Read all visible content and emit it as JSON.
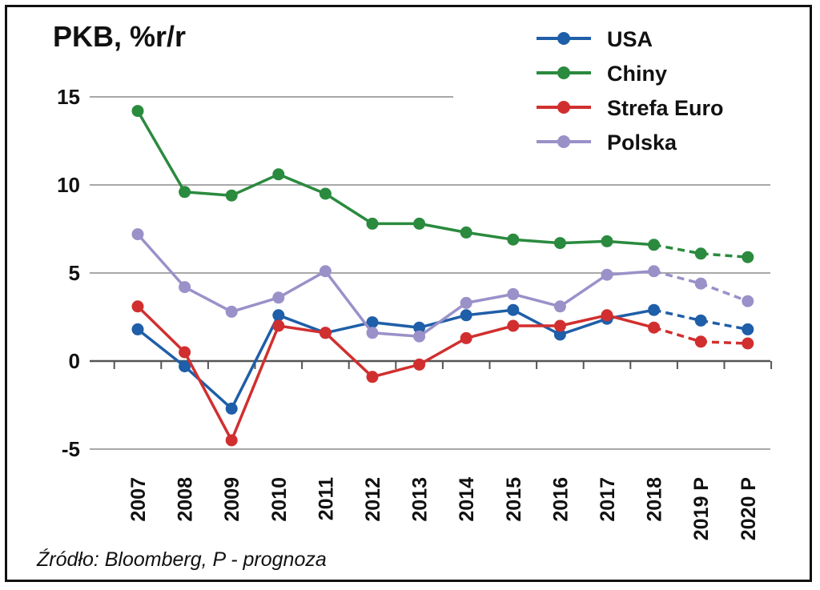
{
  "chart_data": {
    "type": "line",
    "title": "PKB, %r/r",
    "source": "Źródło: Bloomberg, P - prognoza",
    "categories": [
      "2007",
      "2008",
      "2009",
      "2010",
      "2011",
      "2012",
      "2013",
      "2014",
      "2015",
      "2016",
      "2017",
      "2018",
      "2019 P",
      "2020 P"
    ],
    "ylim": [
      -5,
      15
    ],
    "yticks": [
      "15",
      "10",
      "5",
      "0",
      "-5"
    ],
    "grid": true,
    "legend_position": "top-right",
    "forecast_from_index": 11,
    "series": [
      {
        "name": "USA",
        "color": "#1f5ea8",
        "values": [
          1.8,
          -0.3,
          -2.7,
          2.6,
          1.6,
          2.2,
          1.9,
          2.6,
          2.9,
          1.5,
          2.4,
          2.9,
          2.3,
          1.8
        ]
      },
      {
        "name": "Chiny",
        "color": "#2a8a3e",
        "values": [
          14.2,
          9.6,
          9.4,
          10.6,
          9.5,
          7.8,
          7.8,
          7.3,
          6.9,
          6.7,
          6.8,
          6.6,
          6.1,
          5.9
        ]
      },
      {
        "name": "Strefa Euro",
        "color": "#d12f2f",
        "values": [
          3.1,
          0.5,
          -4.5,
          2.0,
          1.6,
          -0.9,
          -0.2,
          1.3,
          2.0,
          2.0,
          2.6,
          1.9,
          1.1,
          1.0
        ]
      },
      {
        "name": "Polska",
        "color": "#9a91c9",
        "values": [
          7.2,
          4.2,
          2.8,
          3.6,
          5.1,
          1.6,
          1.4,
          3.3,
          3.8,
          3.1,
          4.9,
          5.1,
          4.4,
          3.4
        ]
      }
    ]
  }
}
